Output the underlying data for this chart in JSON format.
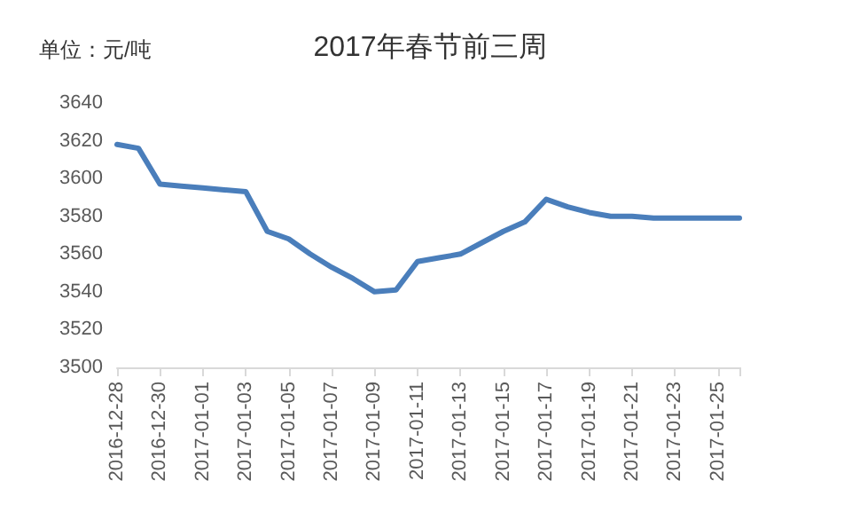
{
  "chart_data": {
    "type": "line",
    "title": "2017年春节前三周",
    "ylabel": "单位：元/吨",
    "categories": [
      "2016-12-28",
      null,
      "2016-12-30",
      null,
      "2017-01-01",
      null,
      "2017-01-03",
      null,
      "2017-01-05",
      null,
      "2017-01-07",
      null,
      "2017-01-09",
      null,
      "2017-01-11",
      null,
      "2017-01-13",
      null,
      "2017-01-15",
      null,
      "2017-01-17",
      null,
      "2017-01-19",
      null,
      "2017-01-21",
      null,
      "2017-01-23",
      null,
      "2017-01-25",
      null
    ],
    "series": [
      {
        "color": "#4a7ebb",
        "values": [
          3618,
          3616,
          3597,
          3596,
          3595,
          3594,
          3593,
          3572,
          3568,
          3560,
          3553,
          3547,
          3540,
          3541,
          3556,
          3558,
          3560,
          3566,
          3572,
          3577,
          3589,
          3585,
          3582,
          3580,
          3580,
          3579,
          3579,
          3579,
          3579,
          3579
        ]
      }
    ],
    "ylim": [
      3500,
      3640
    ],
    "yticks": [
      3500,
      3520,
      3540,
      3560,
      3580,
      3600,
      3620,
      3640
    ],
    "grid": false,
    "marker": "none",
    "line_style": "solid"
  }
}
